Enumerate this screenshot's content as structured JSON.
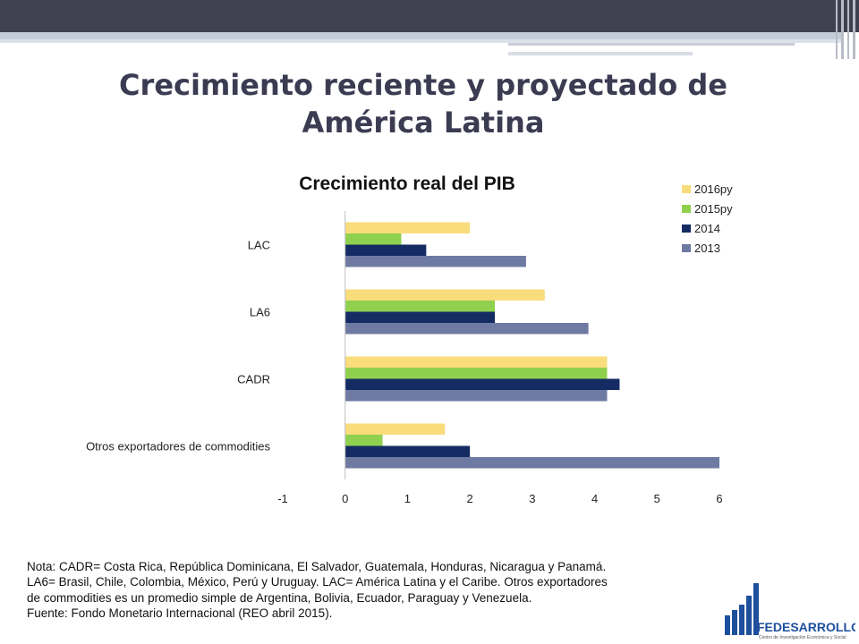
{
  "slide": {
    "title_line1": "Crecimiento reciente y proyectado de",
    "title_line2": "América Latina"
  },
  "chart_data": {
    "type": "bar",
    "orientation": "horizontal",
    "title": "Crecimiento real del PIB",
    "categories": [
      "LAC",
      "LA6",
      "CADR",
      "Otros exportadores de commodities"
    ],
    "series": [
      {
        "name": "2016py",
        "color": "#f9dc7c",
        "values": [
          2.0,
          3.2,
          4.2,
          1.6
        ]
      },
      {
        "name": "2015py",
        "color": "#8fd14f",
        "values": [
          0.9,
          2.4,
          4.2,
          0.6
        ]
      },
      {
        "name": "2014",
        "color": "#142c63",
        "values": [
          1.3,
          2.4,
          4.4,
          2.0
        ]
      },
      {
        "name": "2013",
        "color": "#6f7aa3",
        "values": [
          2.9,
          3.9,
          4.2,
          6.0
        ]
      }
    ],
    "xlim": [
      -1,
      6
    ],
    "xticks": [
      "-1",
      "0",
      "1",
      "2",
      "3",
      "4",
      "5",
      "6"
    ],
    "legend_position": "top-right",
    "grid": false
  },
  "note": {
    "lines": [
      "Nota: CADR= Costa Rica, República Dominicana, El Salvador, Guatemala, Honduras, Nicaragua y Panamá.",
      "LA6= Brasil, Chile, Colombia, México, Perú y Uruguay. LAC= América Latina y el Caribe. Otros exportadores",
      "de commodities es un promedio simple de Argentina, Bolivia, Ecuador, Paraguay y Venezuela.",
      "Fuente: Fondo Monetario Internacional (REO abril 2015)."
    ]
  },
  "logo": {
    "name": "FEDESARROLLO",
    "tagline": "Centro de Investigación Económica y Social",
    "color": "#1d4f9c"
  }
}
